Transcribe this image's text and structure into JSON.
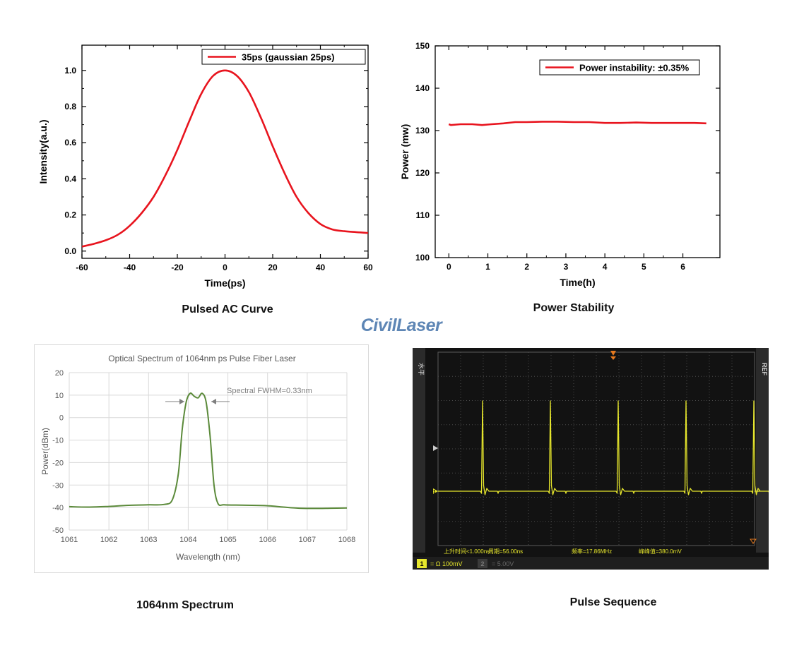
{
  "logo_text": "CivilLaser",
  "captions": {
    "ac": "Pulsed AC Curve",
    "power": "Power Stability",
    "spectrum": "1064nm Spectrum",
    "pulse": "Pulse Sequence"
  },
  "chart_data": [
    {
      "id": "ac",
      "type": "line",
      "xlabel": "Time(ps)",
      "ylabel": "Intensity(a.u.)",
      "xlim": [
        -60,
        60
      ],
      "ylim": [
        -0.04,
        1.14
      ],
      "xticks": [
        -60,
        -40,
        -20,
        0,
        20,
        40,
        60
      ],
      "yticks": [
        0.0,
        0.2,
        0.4,
        0.6,
        0.8,
        1.0
      ],
      "grid": false,
      "legend": "top-right",
      "series_color": "#e8141e",
      "series": [
        {
          "name": "35ps (gaussian 25ps)",
          "x": [
            -60,
            -55,
            -50,
            -45,
            -40,
            -35,
            -30,
            -25,
            -20,
            -15,
            -10,
            -5,
            0,
            5,
            10,
            15,
            20,
            25,
            30,
            35,
            40,
            45,
            50,
            55,
            60
          ],
          "y": [
            0.025,
            0.04,
            0.06,
            0.09,
            0.14,
            0.21,
            0.3,
            0.42,
            0.56,
            0.72,
            0.87,
            0.97,
            1.0,
            0.97,
            0.88,
            0.74,
            0.58,
            0.43,
            0.3,
            0.21,
            0.15,
            0.12,
            0.11,
            0.105,
            0.1
          ]
        }
      ]
    },
    {
      "id": "power",
      "type": "line",
      "xlabel": "Time(h)",
      "ylabel": "Power (mw)",
      "xlim": [
        -0.35,
        6.95
      ],
      "ylim": [
        100,
        150
      ],
      "xticks": [
        0,
        1,
        2,
        3,
        4,
        5,
        6
      ],
      "yticks": [
        100,
        110,
        120,
        130,
        140,
        150
      ],
      "grid": false,
      "legend": "top-right",
      "series_color": "#e8141e",
      "series": [
        {
          "name": "Power instability: ±0.35%",
          "x": [
            0,
            0.05,
            0.3,
            0.6,
            0.85,
            1.1,
            1.4,
            1.7,
            2.0,
            2.4,
            2.8,
            3.2,
            3.6,
            4.0,
            4.4,
            4.8,
            5.2,
            5.6,
            6.0,
            6.3,
            6.6
          ],
          "y": [
            131.5,
            131.3,
            131.5,
            131.5,
            131.3,
            131.5,
            131.7,
            132.0,
            132.0,
            132.1,
            132.1,
            132.0,
            132.0,
            131.8,
            131.8,
            131.9,
            131.8,
            131.8,
            131.8,
            131.8,
            131.7
          ]
        }
      ]
    },
    {
      "id": "spectrum",
      "type": "line",
      "title": "Optical Spectrum of 1064nm ps Pulse Fiber Laser",
      "xlabel": "Wavelength (nm)",
      "ylabel": "Power(dBm)",
      "xlim": [
        1061,
        1068
      ],
      "ylim": [
        -50,
        20
      ],
      "xticks": [
        1061,
        1062,
        1063,
        1064,
        1065,
        1066,
        1067,
        1068
      ],
      "yticks": [
        -50,
        -40,
        -30,
        -20,
        -10,
        0,
        10,
        20
      ],
      "grid": true,
      "annotation": "Spectral FWHM=0.33nm",
      "series_color": "#5b8a3a",
      "series": [
        {
          "name": "",
          "x": [
            1061,
            1061.5,
            1062,
            1062.5,
            1063,
            1063.4,
            1063.6,
            1063.75,
            1063.85,
            1063.95,
            1064.05,
            1064.15,
            1064.25,
            1064.35,
            1064.45,
            1064.55,
            1064.65,
            1064.75,
            1064.9,
            1065.2,
            1065.6,
            1066,
            1066.4,
            1066.8,
            1067.2,
            1067.6,
            1068
          ],
          "y": [
            -39.6,
            -39.8,
            -39.5,
            -39.0,
            -38.8,
            -38.6,
            -36.5,
            -25,
            -5,
            7,
            10.8,
            9.5,
            8.8,
            10.8,
            7,
            -8,
            -30,
            -38.2,
            -38.8,
            -38.9,
            -39.0,
            -39.2,
            -39.8,
            -40.3,
            -40.4,
            -40.3,
            -40.2
          ]
        }
      ]
    },
    {
      "id": "pulse",
      "type": "line",
      "scope": {
        "left_tab_text": "水平",
        "right_tab_text": "REF",
        "ch_marker": "1",
        "readouts": [
          "上升时间<1.000ns",
          "周期=56.00ns",
          "频率=17.86MHz",
          "峰峰值=380.0mV"
        ],
        "ch1_label": "1",
        "ch1_setting": "= Ω  100mV",
        "ch2_label": "2",
        "ch2_setting": "= 5.00V",
        "trace_color": "#e6e62c",
        "pulse_positions_div": [
          2.0,
          5.0,
          8.0,
          11.0,
          14.0
        ],
        "grid_divisions_x": 14,
        "grid_divisions_y": 8
      }
    }
  ]
}
